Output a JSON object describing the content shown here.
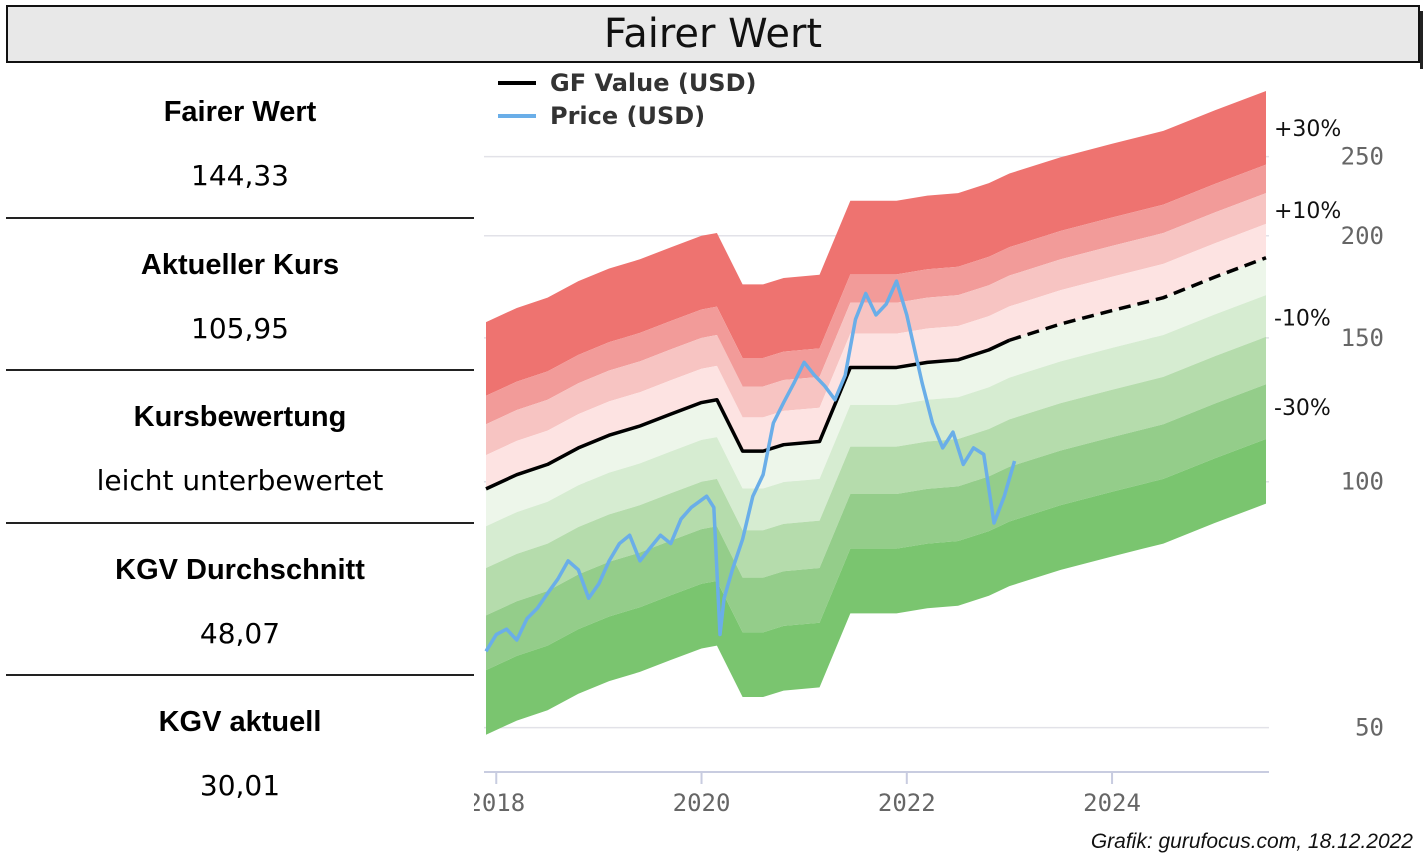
{
  "header": {
    "title": "Fairer Wert"
  },
  "stats": [
    {
      "label": "Fairer Wert",
      "value": "144,33"
    },
    {
      "label": "Aktueller Kurs",
      "value": "105,95"
    },
    {
      "label": "Kursbewertung",
      "value": "leicht unterbewertet"
    },
    {
      "label": "KGV Durchschnitt",
      "value": "48,07"
    },
    {
      "label": "KGV aktuell",
      "value": "30,01"
    }
  ],
  "credit": "Grafik: gurufocus.com, 18.12.2022",
  "chart_data": {
    "type": "line",
    "title": "",
    "legend": {
      "position": "top-left",
      "entries": [
        "GF Value (USD)",
        "Price (USD)"
      ]
    },
    "x_ticks": [
      2018,
      2020,
      2022,
      2024
    ],
    "x_tick_labels": [
      "2018",
      "2020",
      "2022",
      "2024"
    ],
    "xlim": [
      2017.9,
      2025.5
    ],
    "y_ticks": [
      50,
      100,
      150,
      200,
      250
    ],
    "y_tick_labels": [
      "50",
      "100",
      "150",
      "200",
      "250"
    ],
    "ylim": [
      45,
      262
    ],
    "y_scale": "log",
    "grid": "horizontal",
    "band_labels": [
      "+30%",
      "+10%",
      "-10%",
      "-30%"
    ],
    "band_factors": [
      1.3,
      1.1,
      0.9,
      0.7
    ],
    "colors": {
      "gf_value": "#000000",
      "price": "#6aaee8",
      "over": [
        "#ee7370",
        "#f29b99",
        "#f7c4c2",
        "#fde3e2"
      ],
      "under": [
        "#edf6ea",
        "#d6ecd1",
        "#b5dcac",
        "#94cd8a",
        "#7ac56f"
      ]
    },
    "series": [
      {
        "name": "GF Value (USD)",
        "dashed_after": 2023.0,
        "points": [
          [
            2017.9,
            98
          ],
          [
            2018.2,
            102
          ],
          [
            2018.5,
            105
          ],
          [
            2018.8,
            110
          ],
          [
            2019.1,
            114
          ],
          [
            2019.4,
            117
          ],
          [
            2019.7,
            121
          ],
          [
            2020.0,
            125
          ],
          [
            2020.15,
            126
          ],
          [
            2020.4,
            109
          ],
          [
            2020.6,
            109
          ],
          [
            2020.8,
            111
          ],
          [
            2021.15,
            112
          ],
          [
            2021.45,
            138
          ],
          [
            2021.6,
            138
          ],
          [
            2021.9,
            138
          ],
          [
            2022.2,
            140
          ],
          [
            2022.5,
            141
          ],
          [
            2022.8,
            145
          ],
          [
            2023.0,
            149
          ],
          [
            2023.5,
            156
          ],
          [
            2024.0,
            162
          ],
          [
            2024.5,
            168
          ],
          [
            2025.0,
            178
          ],
          [
            2025.5,
            188
          ]
        ]
      },
      {
        "name": "Price (USD)",
        "points": [
          [
            2017.9,
            62
          ],
          [
            2018.0,
            65
          ],
          [
            2018.1,
            66
          ],
          [
            2018.2,
            64
          ],
          [
            2018.3,
            68
          ],
          [
            2018.4,
            70
          ],
          [
            2018.5,
            73
          ],
          [
            2018.6,
            76
          ],
          [
            2018.7,
            80
          ],
          [
            2018.8,
            78
          ],
          [
            2018.9,
            72
          ],
          [
            2019.0,
            75
          ],
          [
            2019.1,
            80
          ],
          [
            2019.2,
            84
          ],
          [
            2019.3,
            86
          ],
          [
            2019.4,
            80
          ],
          [
            2019.5,
            83
          ],
          [
            2019.6,
            86
          ],
          [
            2019.7,
            84
          ],
          [
            2019.8,
            90
          ],
          [
            2019.9,
            93
          ],
          [
            2020.0,
            95
          ],
          [
            2020.05,
            96
          ],
          [
            2020.12,
            93
          ],
          [
            2020.18,
            65
          ],
          [
            2020.22,
            72
          ],
          [
            2020.3,
            78
          ],
          [
            2020.4,
            85
          ],
          [
            2020.5,
            96
          ],
          [
            2020.6,
            102
          ],
          [
            2020.7,
            118
          ],
          [
            2020.8,
            125
          ],
          [
            2020.9,
            132
          ],
          [
            2021.0,
            140
          ],
          [
            2021.1,
            135
          ],
          [
            2021.2,
            131
          ],
          [
            2021.3,
            126
          ],
          [
            2021.4,
            135
          ],
          [
            2021.5,
            158
          ],
          [
            2021.6,
            170
          ],
          [
            2021.7,
            160
          ],
          [
            2021.8,
            165
          ],
          [
            2021.9,
            176
          ],
          [
            2022.0,
            160
          ],
          [
            2022.05,
            150
          ],
          [
            2022.15,
            132
          ],
          [
            2022.25,
            118
          ],
          [
            2022.35,
            110
          ],
          [
            2022.45,
            115
          ],
          [
            2022.55,
            105
          ],
          [
            2022.65,
            110
          ],
          [
            2022.75,
            108
          ],
          [
            2022.85,
            89
          ],
          [
            2022.95,
            96
          ],
          [
            2023.05,
            106
          ]
        ]
      }
    ]
  }
}
